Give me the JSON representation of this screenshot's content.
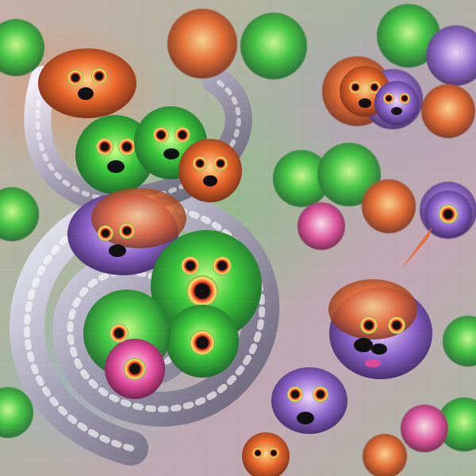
{
  "scene": {
    "palette": {
      "background": "#b9a9a6",
      "green": "#37c43a",
      "orange": "#e8662a",
      "purple": "#8a62c8",
      "pink": "#e14a9a",
      "gray": "#a8a0a8",
      "black": "#111111"
    }
  }
}
